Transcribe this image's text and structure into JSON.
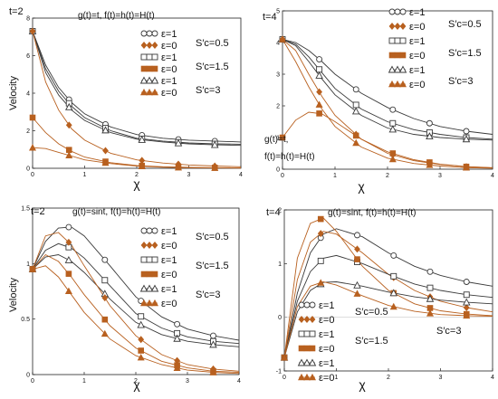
{
  "figure": {
    "colors": {
      "dark": "#3a3a3a",
      "brown": "#b8601f",
      "axis": "#222222"
    }
  },
  "chart_data": [
    {
      "type": "line",
      "panel": "top-left",
      "time_label": "t=2",
      "formula": "g(t)=t, f(t)=h(t)=H(t)",
      "formula_lines": [],
      "xlabel": "χ",
      "ylabel": "Velocity",
      "xlim": [
        0,
        4
      ],
      "ylim": [
        0,
        8
      ],
      "xticks": [
        "0",
        "1",
        "2",
        "3",
        "4"
      ],
      "yticks": [
        "0",
        "2",
        "4",
        "6",
        "8"
      ],
      "legend_items": [
        {
          "label": "ε=1",
          "marker": "circle"
        },
        {
          "label": "ε=0",
          "marker": "diamond"
        },
        {
          "label": "ε=1",
          "marker": "square-open"
        },
        {
          "label": "ε=0",
          "marker": "square-filled"
        },
        {
          "label": "ε=1",
          "marker": "triangle-open"
        },
        {
          "label": "ε=0",
          "marker": "triangle-filled"
        }
      ],
      "sc_labels": [
        "S′c=0.5",
        "S′c=1.5",
        "S′c=3"
      ],
      "series": [
        {
          "marker": "circle",
          "color": "#3a3a3a",
          "x": [
            0,
            0.25,
            0.5,
            0.75,
            1,
            1.5,
            2,
            2.5,
            3,
            3.5,
            4
          ],
          "y": [
            7.3,
            5.5,
            4.3,
            3.5,
            2.9,
            2.2,
            1.8,
            1.6,
            1.5,
            1.45,
            1.4
          ]
        },
        {
          "marker": "square-open",
          "color": "#3a3a3a",
          "x": [
            0,
            0.25,
            0.5,
            0.75,
            1,
            1.5,
            2,
            2.5,
            3,
            3.5,
            4
          ],
          "y": [
            7.3,
            5.3,
            4.1,
            3.3,
            2.7,
            2.0,
            1.6,
            1.45,
            1.35,
            1.3,
            1.28
          ]
        },
        {
          "marker": "triangle-open",
          "color": "#3a3a3a",
          "x": [
            0,
            0.25,
            0.5,
            0.75,
            1,
            1.5,
            2,
            2.5,
            3,
            3.5,
            4
          ],
          "y": [
            7.3,
            5.1,
            3.9,
            3.1,
            2.55,
            1.9,
            1.55,
            1.4,
            1.3,
            1.25,
            1.22
          ]
        },
        {
          "marker": "diamond",
          "color": "#b8601f",
          "x": [
            0,
            0.25,
            0.5,
            0.75,
            1,
            1.5,
            2,
            2.5,
            3,
            3.5,
            4
          ],
          "y": [
            7.3,
            4.6,
            3.1,
            2.1,
            1.5,
            0.8,
            0.45,
            0.28,
            0.18,
            0.12,
            0.08
          ]
        },
        {
          "marker": "square-filled",
          "color": "#b8601f",
          "x": [
            0,
            0.25,
            0.5,
            0.75,
            1,
            1.5,
            2,
            2.5,
            3,
            3.5,
            4
          ],
          "y": [
            2.7,
            1.9,
            1.3,
            0.9,
            0.6,
            0.3,
            0.15,
            0.08,
            0.05,
            0.03,
            0.02
          ]
        },
        {
          "marker": "triangle-filled",
          "color": "#b8601f",
          "x": [
            0,
            0.25,
            0.5,
            0.75,
            1,
            1.5,
            2,
            2.5,
            3,
            3.5,
            4
          ],
          "y": [
            1.1,
            1.05,
            0.85,
            0.65,
            0.45,
            0.25,
            0.12,
            0.06,
            0.03,
            0.02,
            0.01
          ]
        }
      ]
    },
    {
      "type": "line",
      "panel": "top-right",
      "time_label": "t=4",
      "formula": "",
      "formula_lines": [
        "g(t)=t,",
        "f(t)=h(t)=H(t)"
      ],
      "xlabel": "χ",
      "ylabel": "",
      "xlim": [
        0,
        4
      ],
      "ylim": [
        0,
        5
      ],
      "xticks": [
        "0",
        "1",
        "2",
        "3",
        "4"
      ],
      "yticks": [
        "0",
        "1",
        "2",
        "3",
        "4",
        "5"
      ],
      "legend_items": [
        {
          "label": "ε=1",
          "marker": "circle"
        },
        {
          "label": "ε=0",
          "marker": "diamond"
        },
        {
          "label": "ε=1",
          "marker": "square-open"
        },
        {
          "label": "ε=0",
          "marker": "square-filled"
        },
        {
          "label": "ε=1",
          "marker": "triangle-open"
        },
        {
          "label": "ε=0",
          "marker": "triangle-filled"
        }
      ],
      "sc_labels": [
        "S′c=0.5",
        "S′c=1.5",
        "S′c=3"
      ],
      "series": [
        {
          "marker": "circle",
          "color": "#3a3a3a",
          "x": [
            0,
            0.25,
            0.5,
            0.75,
            1,
            1.5,
            2,
            2.5,
            3,
            3.5,
            4
          ],
          "y": [
            4.1,
            4.0,
            3.75,
            3.4,
            3.0,
            2.4,
            1.95,
            1.6,
            1.35,
            1.2,
            1.1
          ]
        },
        {
          "marker": "square-open",
          "color": "#3a3a3a",
          "x": [
            0,
            0.25,
            0.5,
            0.75,
            1,
            1.5,
            2,
            2.5,
            3,
            3.5,
            4
          ],
          "y": [
            4.1,
            3.95,
            3.55,
            3.05,
            2.55,
            1.9,
            1.5,
            1.25,
            1.1,
            1.0,
            0.95
          ]
        },
        {
          "marker": "triangle-open",
          "color": "#3a3a3a",
          "x": [
            0,
            0.25,
            0.5,
            0.75,
            1,
            1.5,
            2,
            2.5,
            3,
            3.5,
            4
          ],
          "y": [
            4.1,
            3.9,
            3.4,
            2.85,
            2.35,
            1.7,
            1.3,
            1.1,
            1.0,
            0.95,
            0.92
          ]
        },
        {
          "marker": "diamond",
          "color": "#b8601f",
          "x": [
            0,
            0.25,
            0.5,
            0.75,
            1,
            1.5,
            2,
            2.5,
            3,
            3.5,
            4
          ],
          "y": [
            4.1,
            3.75,
            3.0,
            2.3,
            1.7,
            0.95,
            0.5,
            0.27,
            0.15,
            0.08,
            0.05
          ]
        },
        {
          "marker": "triangle-filled",
          "color": "#b8601f",
          "x": [
            0,
            0.25,
            0.5,
            0.75,
            1,
            1.5,
            2,
            2.5,
            3,
            3.5,
            4
          ],
          "y": [
            4.1,
            3.4,
            2.6,
            1.9,
            1.35,
            0.7,
            0.35,
            0.18,
            0.1,
            0.05,
            0.03
          ]
        },
        {
          "marker": "square-filled",
          "color": "#b8601f",
          "x": [
            0,
            0.25,
            0.5,
            0.75,
            1,
            1.5,
            2,
            2.5,
            3,
            3.5,
            4
          ],
          "y": [
            1.0,
            1.55,
            1.8,
            1.75,
            1.5,
            0.95,
            0.55,
            0.3,
            0.16,
            0.08,
            0.04
          ]
        }
      ]
    },
    {
      "type": "line",
      "panel": "bottom-left",
      "time_label": "t=2",
      "formula": "g(t)=sint, f(t)=h(t)=H(t)",
      "formula_lines": [],
      "xlabel": "χ",
      "ylabel": "Velocity",
      "xlim": [
        0,
        4
      ],
      "ylim": [
        0,
        1.5
      ],
      "xticks": [
        "0",
        "1",
        "2",
        "3",
        "4"
      ],
      "yticks": [
        "0",
        "0.5",
        "1",
        "1.5"
      ],
      "legend_items": [
        {
          "label": "ε=1",
          "marker": "circle"
        },
        {
          "label": "ε=0",
          "marker": "diamond"
        },
        {
          "label": "ε=1",
          "marker": "square-open"
        },
        {
          "label": "ε=0",
          "marker": "square-filled"
        },
        {
          "label": "ε=1",
          "marker": "triangle-open"
        },
        {
          "label": "ε=0",
          "marker": "triangle-filled"
        }
      ],
      "sc_labels": [
        "S′c=0.5",
        "S′c=1.5",
        "S′c=3"
      ],
      "series": [
        {
          "marker": "circle",
          "color": "#3a3a3a",
          "x": [
            0,
            0.25,
            0.5,
            0.75,
            1,
            1.5,
            2,
            2.5,
            3,
            3.5,
            4
          ],
          "y": [
            0.95,
            1.2,
            1.32,
            1.33,
            1.25,
            0.98,
            0.7,
            0.52,
            0.41,
            0.35,
            0.31
          ]
        },
        {
          "marker": "square-open",
          "color": "#3a3a3a",
          "x": [
            0,
            0.25,
            0.5,
            0.75,
            1,
            1.5,
            2,
            2.5,
            3,
            3.5,
            4
          ],
          "y": [
            0.95,
            1.12,
            1.18,
            1.14,
            1.05,
            0.8,
            0.55,
            0.42,
            0.34,
            0.3,
            0.28
          ]
        },
        {
          "marker": "triangle-open",
          "color": "#3a3a3a",
          "x": [
            0,
            0.25,
            0.5,
            0.75,
            1,
            1.5,
            2,
            2.5,
            3,
            3.5,
            4
          ],
          "y": [
            0.95,
            1.06,
            1.08,
            1.02,
            0.92,
            0.68,
            0.47,
            0.36,
            0.3,
            0.27,
            0.25
          ]
        },
        {
          "marker": "diamond",
          "color": "#b8601f",
          "x": [
            0,
            0.25,
            0.5,
            0.75,
            1,
            1.5,
            2,
            2.5,
            3,
            3.5,
            4
          ],
          "y": [
            0.95,
            1.25,
            1.28,
            1.17,
            0.98,
            0.62,
            0.35,
            0.18,
            0.09,
            0.05,
            0.03
          ]
        },
        {
          "marker": "square-filled",
          "color": "#b8601f",
          "x": [
            0,
            0.25,
            0.5,
            0.75,
            1,
            1.5,
            2,
            2.5,
            3,
            3.5,
            4
          ],
          "y": [
            0.95,
            1.08,
            1.02,
            0.88,
            0.72,
            0.44,
            0.24,
            0.12,
            0.06,
            0.03,
            0.02
          ]
        },
        {
          "marker": "triangle-filled",
          "color": "#b8601f",
          "x": [
            0,
            0.25,
            0.5,
            0.75,
            1,
            1.5,
            2,
            2.5,
            3,
            3.5,
            4
          ],
          "y": [
            0.95,
            0.98,
            0.88,
            0.72,
            0.56,
            0.32,
            0.17,
            0.09,
            0.04,
            0.02,
            0.01
          ]
        }
      ]
    },
    {
      "type": "line",
      "panel": "bottom-right",
      "time_label": "t=4",
      "formula": "g(t)=sint, f(t)=h(t)=H(t)",
      "formula_lines": [],
      "xlabel": "χ",
      "ylabel": "",
      "xlim": [
        0,
        4
      ],
      "ylim": [
        -1,
        2
      ],
      "xticks": [
        "0",
        "1",
        "2",
        "3",
        "4"
      ],
      "yticks": [
        "-1",
        "0",
        "1",
        "2"
      ],
      "legend_items": [
        {
          "label": "ε=1",
          "marker": "circle"
        },
        {
          "label": "ε=0",
          "marker": "diamond"
        },
        {
          "label": "ε=1",
          "marker": "square-open"
        },
        {
          "label": "ε=0",
          "marker": "square-filled"
        },
        {
          "label": "ε=1",
          "marker": "triangle-open"
        },
        {
          "label": "ε=0",
          "marker": "triangle-filled"
        }
      ],
      "sc_labels": [
        "S′c=0.5",
        "S′c=1.5",
        "S′c=3"
      ],
      "series": [
        {
          "marker": "circle",
          "color": "#3a3a3a",
          "x": [
            0,
            0.25,
            0.5,
            0.75,
            1,
            1.5,
            2,
            2.5,
            3,
            3.5,
            4
          ],
          "y": [
            -0.75,
            0.45,
            1.2,
            1.55,
            1.65,
            1.5,
            1.2,
            0.95,
            0.78,
            0.66,
            0.58
          ]
        },
        {
          "marker": "diamond",
          "color": "#b8601f",
          "x": [
            0,
            0.25,
            0.5,
            0.75,
            1,
            1.5,
            2,
            2.5,
            3,
            3.5,
            4
          ],
          "y": [
            -0.75,
            0.7,
            1.4,
            1.6,
            1.55,
            1.2,
            0.8,
            0.5,
            0.3,
            0.18,
            0.1
          ]
        },
        {
          "marker": "square-open",
          "color": "#3a3a3a",
          "x": [
            0,
            0.25,
            0.5,
            0.75,
            1,
            1.5,
            2,
            2.5,
            3,
            3.5,
            4
          ],
          "y": [
            -0.75,
            0.3,
            0.85,
            1.1,
            1.15,
            1.0,
            0.8,
            0.62,
            0.5,
            0.42,
            0.37
          ]
        },
        {
          "marker": "square-filled",
          "color": "#b8601f",
          "x": [
            0,
            0.25,
            0.5,
            0.75,
            1,
            1.5,
            2,
            2.5,
            3,
            3.5,
            4
          ],
          "y": [
            -0.75,
            1.1,
            1.75,
            1.85,
            1.6,
            0.95,
            0.5,
            0.25,
            0.12,
            0.06,
            0.03
          ]
        },
        {
          "marker": "triangle-open",
          "color": "#3a3a3a",
          "x": [
            0,
            0.25,
            0.5,
            0.75,
            1,
            1.5,
            2,
            2.5,
            3,
            3.5,
            4
          ],
          "y": [
            -0.75,
            0.1,
            0.5,
            0.65,
            0.66,
            0.58,
            0.47,
            0.38,
            0.32,
            0.28,
            0.25
          ]
        },
        {
          "marker": "triangle-filled",
          "color": "#b8601f",
          "x": [
            0,
            0.25,
            0.5,
            0.75,
            1,
            1.5,
            2,
            2.5,
            3,
            3.5,
            4
          ],
          "y": [
            -0.75,
            0.2,
            0.58,
            0.66,
            0.6,
            0.4,
            0.22,
            0.11,
            0.05,
            0.03,
            0.02
          ]
        }
      ]
    }
  ]
}
